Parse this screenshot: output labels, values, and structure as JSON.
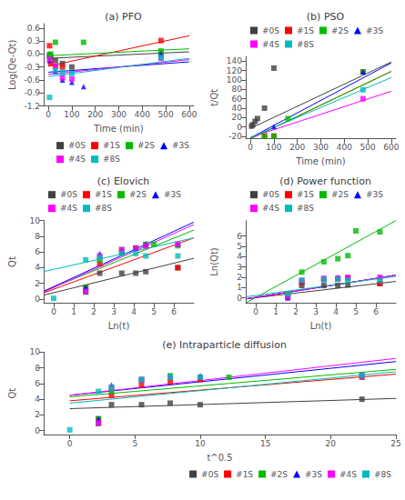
{
  "chart_data": [
    {
      "type": "scatter",
      "title": "(a) PFO",
      "x_label": "Time (min)",
      "y_label": "Log(Qe-Qt)",
      "xlim": [
        -20,
        620
      ],
      "ylim": [
        -1.2,
        0.7
      ],
      "xticks": [
        0,
        100,
        200,
        300,
        400,
        500,
        600
      ],
      "yticks": [
        -1.2,
        -0.9,
        -0.6,
        -0.3,
        {
          "value": 0.0,
          "label": "0.0"
        },
        0.3,
        0.6
      ],
      "grid": false,
      "legend": "lower right",
      "series": [
        {
          "name": "#0S",
          "color": "#404040",
          "marker": "square",
          "x": [
            5,
            10,
            30,
            60,
            100,
            480
          ],
          "values": [
            -0.02,
            -0.08,
            -0.15,
            -0.22,
            -0.3,
            0.0
          ],
          "line": {
            "x": [
              0,
              600
            ],
            "values": [
              -0.1,
              0.05
            ]
          }
        },
        {
          "name": "#1S",
          "color": "#ff0000",
          "marker": "square",
          "x": [
            5,
            10,
            30,
            60,
            480
          ],
          "values": [
            0.19,
            -0.22,
            -0.28,
            -0.3,
            0.31
          ],
          "line": {
            "x": [
              0,
              600
            ],
            "values": [
              -0.28,
              0.42
            ]
          }
        },
        {
          "name": "#2S",
          "color": "#00bb00",
          "marker": "square",
          "x": [
            5,
            10,
            30,
            150,
            480
          ],
          "values": [
            -0.05,
            0.0,
            0.27,
            0.27,
            0.07
          ],
          "line": {
            "x": [
              0,
              600
            ],
            "values": [
              -0.04,
              0.12
            ]
          }
        },
        {
          "name": "#3S",
          "color": "#0000ff",
          "marker": "triangle",
          "x": [
            5,
            30,
            60,
            100,
            150,
            480
          ],
          "values": [
            -0.15,
            -0.4,
            -0.6,
            -0.65,
            -0.75,
            0.0
          ],
          "line": {
            "x": [
              0,
              600
            ],
            "values": [
              -0.42,
              -0.18
            ]
          }
        },
        {
          "name": "#4S",
          "color": "#ff00ff",
          "marker": "square",
          "x": [
            5,
            30,
            60,
            100,
            480
          ],
          "values": [
            -0.12,
            -0.28,
            -0.55,
            -0.58,
            -0.1
          ],
          "line": {
            "x": [
              0,
              600
            ],
            "values": [
              -0.47,
              -0.13
            ]
          }
        },
        {
          "name": "#8S",
          "color": "#00bbbb",
          "marker": "square",
          "x": [
            5,
            30,
            60,
            100,
            480
          ],
          "values": [
            -1.0,
            -0.38,
            -0.42,
            -0.45,
            -0.08
          ],
          "line": {
            "x": [
              0,
              600
            ],
            "values": [
              -0.52,
              -0.1
            ]
          }
        }
      ]
    },
    {
      "type": "scatter",
      "title": "(b) PSO",
      "x_label": "Time (min)",
      "y_label": "t/Qt",
      "xlim": [
        -20,
        620
      ],
      "ylim": [
        -25,
        150
      ],
      "xticks": [
        0,
        100,
        200,
        300,
        400,
        500,
        600
      ],
      "yticks": [
        -20,
        0,
        20,
        40,
        60,
        80,
        100,
        120,
        140
      ],
      "grid": false,
      "legend": "upper left",
      "series": [
        {
          "name": "#0S",
          "color": "#404040",
          "marker": "square",
          "x": [
            5,
            10,
            20,
            30,
            60,
            100
          ],
          "values": [
            2,
            5,
            12,
            18,
            40,
            125
          ],
          "line": {
            "x": [
              0,
              600
            ],
            "values": [
              -3,
              138
            ]
          }
        },
        {
          "name": "#1S",
          "color": "#ff0000",
          "marker": "square",
          "x": [
            60,
            100,
            480
          ],
          "values": [
            -19,
            -19,
            117
          ],
          "line": {
            "x": [
              0,
              600
            ],
            "values": [
              -25,
              118
            ]
          }
        },
        {
          "name": "#2S",
          "color": "#00bb00",
          "marker": "square",
          "x": [
            60,
            100,
            160,
            480
          ],
          "values": [
            -20,
            -20,
            18,
            117
          ],
          "line": {
            "x": [
              0,
              600
            ],
            "values": [
              -25,
              118
            ]
          }
        },
        {
          "name": "#3S",
          "color": "#0000ff",
          "marker": "triangle",
          "x": [
            100,
            480
          ],
          "values": [
            1,
            117
          ],
          "line": {
            "x": [
              0,
              600
            ],
            "values": [
              -23,
              136
            ]
          }
        },
        {
          "name": "#4S",
          "color": "#ff00ff",
          "marker": "square",
          "x": [
            480
          ],
          "values": [
            60
          ],
          "line": {
            "x": [
              0,
              600
            ],
            "values": [
              -22,
              76
            ]
          }
        },
        {
          "name": "#8S",
          "color": "#00bbbb",
          "marker": "square",
          "x": [
            480
          ],
          "values": [
            79
          ],
          "line": {
            "x": [
              0,
              600
            ],
            "values": [
              -22,
              105
            ]
          }
        }
      ]
    },
    {
      "type": "scatter",
      "title": "(c) Elovich",
      "x_label": "Ln(t)",
      "y_label": "Qt",
      "xlim": [
        -0.5,
        7
      ],
      "ylim": [
        -0.5,
        10
      ],
      "xticks": [
        0,
        1,
        2,
        3,
        4,
        5,
        6
      ],
      "yticks": [
        0,
        2,
        4,
        6,
        8,
        10
      ],
      "grid": false,
      "legend": "upper left",
      "series": [
        {
          "name": "#0S",
          "color": "#404040",
          "marker": "square",
          "x": [
            1.6,
            2.3,
            3.4,
            4.1,
            4.6,
            6.2
          ],
          "values": [
            0.9,
            3.3,
            3.3,
            3.3,
            3.5,
            4.0
          ],
          "line": {
            "x": [
              -0.5,
              7
            ],
            "values": [
              0.5,
              5.2
            ]
          }
        },
        {
          "name": "#1S",
          "color": "#ff0000",
          "marker": "square",
          "x": [
            1.6,
            2.3,
            3.4,
            4.1,
            4.6,
            6.2
          ],
          "values": [
            1.5,
            4.5,
            6.0,
            6.5,
            6.8,
            4.0
          ],
          "line": {
            "x": [
              -0.5,
              7
            ],
            "values": [
              0.8,
              7.8
            ]
          }
        },
        {
          "name": "#2S",
          "color": "#00bb00",
          "marker": "square",
          "x": [
            1.6,
            2.3,
            3.4,
            4.1,
            4.6,
            5.0,
            6.2
          ],
          "values": [
            1.5,
            5.0,
            6.3,
            6.5,
            7.0,
            7.0,
            6.8
          ],
          "line": {
            "x": [
              -0.5,
              7
            ],
            "values": [
              1.0,
              8.8
            ]
          }
        },
        {
          "name": "#3S",
          "color": "#0000ff",
          "marker": "triangle",
          "x": [
            1.6,
            2.3,
            3.4,
            4.1,
            4.6,
            6.2
          ],
          "values": [
            1.5,
            5.8,
            6.2,
            6.5,
            7.0,
            7.0
          ],
          "line": {
            "x": [
              -0.5,
              7
            ],
            "values": [
              1.0,
              9.8
            ]
          }
        },
        {
          "name": "#4S",
          "color": "#ff00ff",
          "marker": "square",
          "x": [
            1.6,
            2.3,
            3.4,
            4.1,
            4.6,
            6.2
          ],
          "values": [
            1.0,
            5.5,
            6.3,
            6.5,
            6.8,
            7.0
          ],
          "line": {
            "x": [
              -0.5,
              7
            ],
            "values": [
              0.9,
              9.5
            ]
          }
        },
        {
          "name": "#8S",
          "color": "#00bbbb",
          "marker": "square",
          "x": [
            0.0,
            1.6,
            2.3,
            3.4,
            4.1,
            4.6,
            6.2
          ],
          "values": [
            0.1,
            5.0,
            5.3,
            5.8,
            5.8,
            5.5,
            5.5
          ],
          "line": {
            "x": [
              -0.5,
              7
            ],
            "values": [
              3.5,
              7.8
            ]
          }
        }
      ]
    },
    {
      "type": "scatter",
      "title": "(d) Power function",
      "x_label": "Ln(t)",
      "y_label": "Ln(Qt)",
      "xlim": [
        -0.5,
        7
      ],
      "ylim": [
        -0.5,
        7.5
      ],
      "xticks": [
        0,
        1,
        2,
        3,
        4,
        5,
        6
      ],
      "yticks": [
        0,
        1,
        2,
        3,
        4,
        5,
        6
      ],
      "grid": false,
      "legend": "upper left",
      "series": [
        {
          "name": "#0S",
          "color": "#404040",
          "marker": "square",
          "x": [
            1.6,
            2.3,
            3.4,
            4.1,
            4.6,
            6.2
          ],
          "values": [
            0.1,
            1.2,
            1.2,
            1.2,
            1.25,
            1.4
          ],
          "line": {
            "x": [
              -0.5,
              7
            ],
            "values": [
              -0.1,
              1.6
            ]
          }
        },
        {
          "name": "#1S",
          "color": "#ff0000",
          "marker": "square",
          "x": [
            1.6,
            2.3,
            3.4,
            4.1,
            4.6,
            6.2
          ],
          "values": [
            0.4,
            1.5,
            1.8,
            1.85,
            1.9,
            1.4
          ],
          "line": {
            "x": [
              -0.5,
              7
            ],
            "values": [
              -0.1,
              2.2
            ]
          }
        },
        {
          "name": "#2S",
          "color": "#00bb00",
          "marker": "square",
          "x": [
            1.6,
            2.3,
            3.4,
            4.1,
            4.6,
            5.0,
            6.2
          ],
          "values": [
            0.4,
            2.5,
            3.5,
            3.8,
            4.1,
            6.5,
            6.4
          ],
          "line": {
            "x": [
              -0.5,
              7
            ],
            "values": [
              -0.5,
              7.5
            ]
          }
        },
        {
          "name": "#3S",
          "color": "#0000ff",
          "marker": "triangle",
          "x": [
            1.6,
            2.3,
            3.4,
            4.1,
            4.6,
            6.2
          ],
          "values": [
            0.0,
            1.7,
            1.8,
            2.0,
            2.0,
            2.0
          ],
          "line": {
            "x": [
              -0.5,
              7
            ],
            "values": [
              -0.1,
              2.2
            ]
          }
        },
        {
          "name": "#4S",
          "color": "#ff00ff",
          "marker": "square",
          "x": [
            1.6,
            2.3,
            3.4,
            4.1,
            4.6,
            6.2
          ],
          "values": [
            0.1,
            1.7,
            1.9,
            1.9,
            2.0,
            2.0
          ],
          "line": {
            "x": [
              -0.5,
              7
            ],
            "values": [
              -0.1,
              2.2
            ]
          }
        },
        {
          "name": "#8S",
          "color": "#00bbbb",
          "marker": "square",
          "x": [
            1.6,
            2.3,
            3.4,
            4.1,
            4.6,
            6.2
          ],
          "values": [
            0.4,
            1.7,
            1.8,
            1.8,
            1.7,
            1.7
          ],
          "line": {
            "x": [
              -0.5,
              7
            ],
            "values": [
              0.1,
              2.1
            ]
          }
        }
      ]
    },
    {
      "type": "scatter",
      "title": "(e) Intraparticle diffusion",
      "x_label": "t^0.5",
      "y_label": "Qt",
      "xlim": [
        -2,
        25
      ],
      "ylim": [
        -0.5,
        10
      ],
      "xticks": [
        0,
        5,
        10,
        15,
        20,
        25
      ],
      "yticks": [
        0,
        2,
        4,
        6,
        8,
        10
      ],
      "grid": false,
      "legend": "lower right",
      "series": [
        {
          "name": "#0S",
          "color": "#404040",
          "marker": "square",
          "x": [
            2.2,
            3.2,
            5.5,
            7.7,
            10.0,
            22.4
          ],
          "values": [
            0.9,
            3.3,
            3.3,
            3.5,
            3.3,
            4.0
          ],
          "line": {
            "x": [
              0,
              25
            ],
            "values": [
              2.8,
              4.1
            ]
          }
        },
        {
          "name": "#1S",
          "color": "#ff0000",
          "marker": "square",
          "x": [
            2.2,
            3.2,
            5.5,
            7.7,
            10.0,
            22.4
          ],
          "values": [
            1.5,
            4.5,
            5.8,
            6.2,
            6.5,
            6.8
          ],
          "line": {
            "x": [
              0,
              25
            ],
            "values": [
              3.8,
              7.2
            ]
          }
        },
        {
          "name": "#2S",
          "color": "#00bb00",
          "marker": "square",
          "x": [
            2.2,
            3.2,
            5.5,
            7.7,
            10.0,
            12.2,
            22.4
          ],
          "values": [
            1.5,
            5.0,
            6.5,
            7.0,
            6.8,
            6.8,
            7.0
          ],
          "line": {
            "x": [
              0,
              25
            ],
            "values": [
              4.3,
              7.8
            ]
          }
        },
        {
          "name": "#3S",
          "color": "#0000ff",
          "marker": "triangle",
          "x": [
            2.2,
            3.2,
            5.5,
            7.7,
            10.0,
            22.4
          ],
          "values": [
            1.5,
            5.8,
            6.5,
            6.8,
            7.0,
            7.0
          ],
          "line": {
            "x": [
              0,
              25
            ],
            "values": [
              4.5,
              8.8
            ]
          }
        },
        {
          "name": "#4S",
          "color": "#ff00ff",
          "marker": "square",
          "x": [
            2.2,
            3.2,
            5.5,
            7.7,
            10.0,
            22.4
          ],
          "values": [
            1.0,
            5.5,
            6.5,
            6.8,
            6.8,
            7.0
          ],
          "line": {
            "x": [
              0,
              25
            ],
            "values": [
              4.5,
              9.2
            ]
          }
        },
        {
          "name": "#8S",
          "color": "#00bbbb",
          "marker": "square",
          "x": [
            0.0,
            2.2,
            3.2,
            5.5,
            7.7,
            10.0,
            22.4
          ],
          "values": [
            0.1,
            5.0,
            5.5,
            6.5,
            6.8,
            6.8,
            7.0
          ],
          "line": {
            "x": [
              0,
              25
            ],
            "values": [
              3.5,
              7.5
            ]
          }
        }
      ]
    }
  ]
}
